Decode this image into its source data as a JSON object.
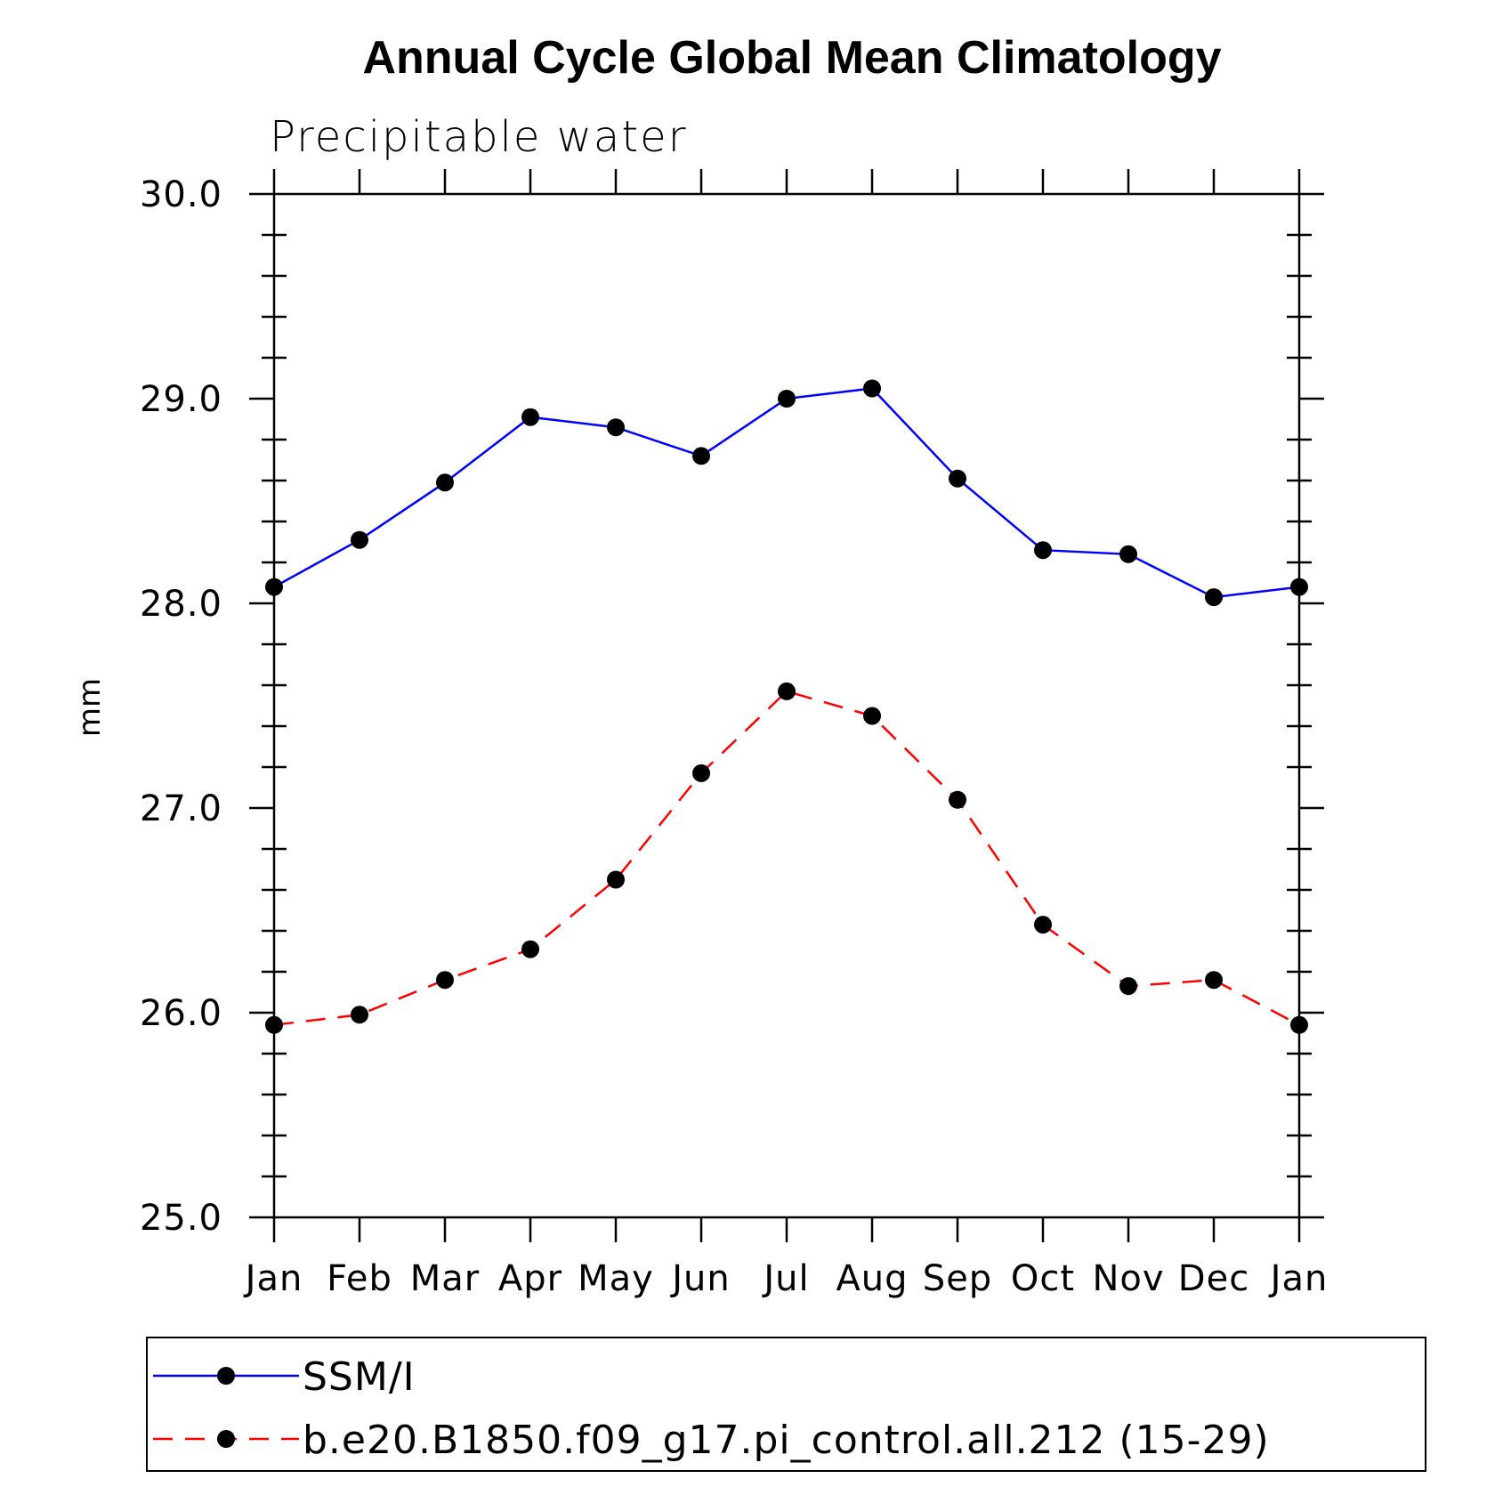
{
  "chart_data": {
    "type": "line",
    "title": "Annual Cycle Global Mean Climatology",
    "subtitle": "Precipitable water",
    "xlabel": "",
    "ylabel": "mm",
    "categories": [
      "Jan",
      "Feb",
      "Mar",
      "Apr",
      "May",
      "Jun",
      "Jul",
      "Aug",
      "Sep",
      "Oct",
      "Nov",
      "Dec",
      "Jan"
    ],
    "ylim": [
      25.0,
      30.0
    ],
    "yticks": [
      "25.0",
      "26.0",
      "27.0",
      "28.0",
      "29.0",
      "30.0"
    ],
    "grid": false,
    "legend_position": "bottom",
    "series": [
      {
        "name": "SSM/I",
        "color": "#0000ff",
        "dash": "solid",
        "marker": "filled-circle",
        "values": [
          28.08,
          28.31,
          28.59,
          28.91,
          28.86,
          28.72,
          29.0,
          29.05,
          28.61,
          28.26,
          28.24,
          28.03,
          28.08
        ]
      },
      {
        "name": "b.e20.B1850.f09_g17.pi_control.all.212 (15-29)",
        "color": "#ff0000",
        "dash": "dashed",
        "marker": "filled-circle",
        "values": [
          25.94,
          25.99,
          26.16,
          26.31,
          26.65,
          27.17,
          27.57,
          27.45,
          27.04,
          26.43,
          26.13,
          26.16,
          25.94
        ]
      }
    ]
  }
}
